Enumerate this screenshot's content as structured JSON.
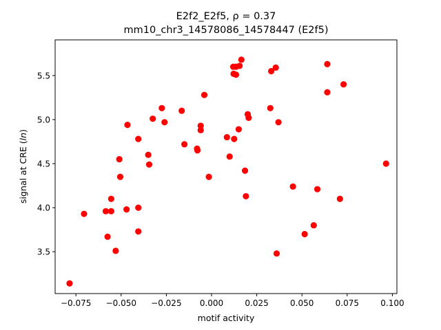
{
  "chart_data": {
    "type": "scatter",
    "title_line1": "E2f2_E2f5, ρ = 0.37",
    "title_line2": "mm10_chr3_14578086_14578447 (E2f5)",
    "xlabel": "motif activity",
    "ylabel": "signal at CRE (ln)",
    "xlim": [
      -0.0865,
      0.1025
    ],
    "ylim": [
      3.025,
      5.905
    ],
    "xticks": [
      -0.075,
      -0.05,
      -0.025,
      0.0,
      0.025,
      0.05,
      0.075,
      0.1
    ],
    "xtick_labels": [
      "−0.075",
      "−0.050",
      "−0.025",
      "0.000",
      "0.025",
      "0.050",
      "0.075",
      "0.100"
    ],
    "yticks": [
      3.5,
      4.0,
      4.5,
      5.0,
      5.5
    ],
    "ytick_labels": [
      "3.5",
      "4.0",
      "4.5",
      "5.0",
      "5.5"
    ],
    "grid": false,
    "marker_color": "#ff0000",
    "points": [
      {
        "x": -0.0785,
        "y": 3.14
      },
      {
        "x": -0.0705,
        "y": 3.93
      },
      {
        "x": -0.0585,
        "y": 3.96
      },
      {
        "x": -0.0575,
        "y": 3.67
      },
      {
        "x": -0.0555,
        "y": 4.1
      },
      {
        "x": -0.0555,
        "y": 3.96
      },
      {
        "x": -0.053,
        "y": 3.51
      },
      {
        "x": -0.051,
        "y": 4.55
      },
      {
        "x": -0.0505,
        "y": 4.35
      },
      {
        "x": -0.047,
        "y": 3.98
      },
      {
        "x": -0.0465,
        "y": 4.94
      },
      {
        "x": -0.0405,
        "y": 4.78
      },
      {
        "x": -0.0405,
        "y": 4.0
      },
      {
        "x": -0.0405,
        "y": 3.73
      },
      {
        "x": -0.035,
        "y": 4.6
      },
      {
        "x": -0.0345,
        "y": 4.49
      },
      {
        "x": -0.0325,
        "y": 5.01
      },
      {
        "x": -0.0275,
        "y": 5.13
      },
      {
        "x": -0.026,
        "y": 4.97
      },
      {
        "x": -0.0165,
        "y": 5.1
      },
      {
        "x": -0.015,
        "y": 4.72
      },
      {
        "x": -0.008,
        "y": 4.67
      },
      {
        "x": -0.0078,
        "y": 4.65
      },
      {
        "x": -0.006,
        "y": 4.93
      },
      {
        "x": -0.006,
        "y": 4.88
      },
      {
        "x": -0.004,
        "y": 5.28
      },
      {
        "x": -0.0015,
        "y": 4.35
      },
      {
        "x": 0.0085,
        "y": 4.8
      },
      {
        "x": 0.01,
        "y": 4.58
      },
      {
        "x": 0.012,
        "y": 5.6
      },
      {
        "x": 0.0122,
        "y": 5.52
      },
      {
        "x": 0.0125,
        "y": 4.78
      },
      {
        "x": 0.0135,
        "y": 5.6
      },
      {
        "x": 0.0135,
        "y": 5.51
      },
      {
        "x": 0.015,
        "y": 4.89
      },
      {
        "x": 0.0155,
        "y": 5.61
      },
      {
        "x": 0.0165,
        "y": 5.68
      },
      {
        "x": 0.0185,
        "y": 4.42
      },
      {
        "x": 0.019,
        "y": 4.13
      },
      {
        "x": 0.02,
        "y": 5.06
      },
      {
        "x": 0.0205,
        "y": 5.02
      },
      {
        "x": 0.0325,
        "y": 5.13
      },
      {
        "x": 0.033,
        "y": 5.55
      },
      {
        "x": 0.0355,
        "y": 5.59
      },
      {
        "x": 0.036,
        "y": 3.48
      },
      {
        "x": 0.037,
        "y": 4.97
      },
      {
        "x": 0.045,
        "y": 4.24
      },
      {
        "x": 0.0515,
        "y": 3.7
      },
      {
        "x": 0.0565,
        "y": 3.8
      },
      {
        "x": 0.0585,
        "y": 4.21
      },
      {
        "x": 0.064,
        "y": 5.63
      },
      {
        "x": 0.064,
        "y": 5.31
      },
      {
        "x": 0.071,
        "y": 4.1
      },
      {
        "x": 0.073,
        "y": 5.4
      },
      {
        "x": 0.0965,
        "y": 4.5
      }
    ]
  }
}
